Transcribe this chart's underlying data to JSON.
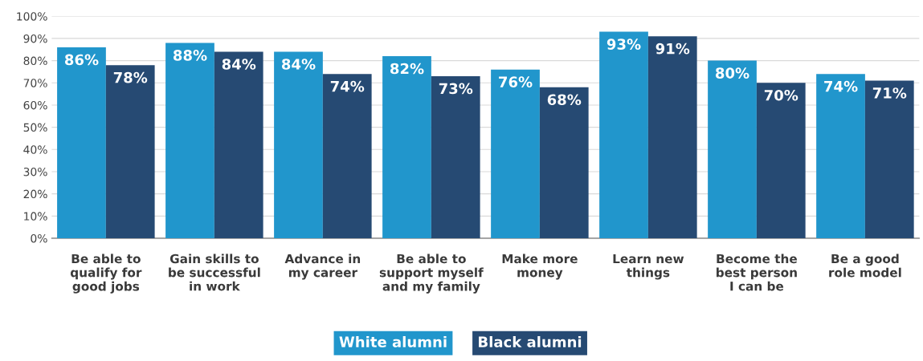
{
  "chart_data": {
    "type": "bar",
    "categories": [
      "Be able to\nqualify for\ngood jobs",
      "Gain skills to\nbe successful\nin work",
      "Advance in\nmy career",
      "Be able to\nsupport myself\nand my family",
      "Make more\nmoney",
      "Learn new\nthings",
      "Become the\nbest person\nI can be",
      "Be a good\nrole model"
    ],
    "series": [
      {
        "name": "White alumni",
        "color": "#2196cc",
        "values": [
          86,
          88,
          84,
          82,
          76,
          93,
          80,
          74
        ],
        "value_labels": [
          "86%",
          "88%",
          "84%",
          "82%",
          "76%",
          "93%",
          "80%",
          "74%"
        ]
      },
      {
        "name": "Black alumni",
        "color": "#264a73",
        "values": [
          78,
          84,
          74,
          73,
          68,
          91,
          70,
          71
        ],
        "value_labels": [
          "78%",
          "84%",
          "74%",
          "73%",
          "68%",
          "91%",
          "70%",
          "71%"
        ]
      }
    ],
    "ylim": [
      0,
      100
    ],
    "yticks": [
      {
        "value": 0,
        "label": "0%"
      },
      {
        "value": 10,
        "label": "10%"
      },
      {
        "value": 20,
        "label": "20%"
      },
      {
        "value": 30,
        "label": "30%"
      },
      {
        "value": 40,
        "label": "40%"
      },
      {
        "value": 50,
        "label": "50%"
      },
      {
        "value": 60,
        "label": "60%"
      },
      {
        "value": 70,
        "label": "70%"
      },
      {
        "value": 80,
        "label": "80%"
      },
      {
        "value": 90,
        "label": "90%"
      },
      {
        "value": 100,
        "label": "100%"
      }
    ],
    "grid": "y",
    "legend": "bottom"
  }
}
